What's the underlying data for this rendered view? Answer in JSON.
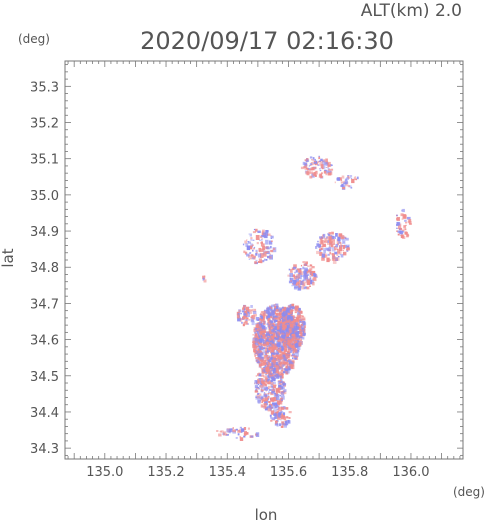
{
  "header": {
    "altitude": "ALT(km) 2.0",
    "timestamp": "2020/09/17 02:16:30"
  },
  "chart_data": {
    "type": "heatmap",
    "title": "",
    "xlabel": "lon",
    "ylabel": "lat",
    "x_unit": "(deg)",
    "y_unit": "(deg)",
    "xlim": [
      134.87,
      136.17
    ],
    "ylim": [
      34.27,
      35.37
    ],
    "x_ticks": [
      "135.0",
      "135.2",
      "135.4",
      "135.6",
      "135.8",
      "136.0"
    ],
    "y_ticks": [
      "34.3",
      "34.4",
      "34.5",
      "34.6",
      "34.7",
      "34.8",
      "34.9",
      "35.0",
      "35.1",
      "35.2",
      "35.3"
    ],
    "minor_tick_step": 0.02,
    "grid": false,
    "colors": {
      "positive": "#f08c8c",
      "negative": "#8c8cf0",
      "frame": "#777777",
      "text": "#555555"
    },
    "regions": [
      {
        "lon": 135.555,
        "lat": 34.6,
        "rx": 0.075,
        "ry": 0.1,
        "density": 1.6
      },
      {
        "lon": 135.61,
        "lat": 34.64,
        "rx": 0.04,
        "ry": 0.06,
        "density": 1.4
      },
      {
        "lon": 135.535,
        "lat": 34.47,
        "rx": 0.05,
        "ry": 0.06,
        "density": 0.9
      },
      {
        "lon": 135.57,
        "lat": 34.39,
        "rx": 0.035,
        "ry": 0.03,
        "density": 0.7
      },
      {
        "lon": 135.465,
        "lat": 34.67,
        "rx": 0.035,
        "ry": 0.03,
        "density": 0.6
      },
      {
        "lon": 135.64,
        "lat": 34.78,
        "rx": 0.045,
        "ry": 0.04,
        "density": 0.7
      },
      {
        "lon": 135.74,
        "lat": 34.86,
        "rx": 0.055,
        "ry": 0.04,
        "density": 0.6
      },
      {
        "lon": 135.5,
        "lat": 34.86,
        "rx": 0.05,
        "ry": 0.05,
        "density": 0.4
      },
      {
        "lon": 135.69,
        "lat": 35.08,
        "rx": 0.05,
        "ry": 0.03,
        "density": 0.7
      },
      {
        "lon": 135.79,
        "lat": 35.04,
        "rx": 0.04,
        "ry": 0.02,
        "density": 0.4
      },
      {
        "lon": 135.43,
        "lat": 34.345,
        "rx": 0.07,
        "ry": 0.015,
        "density": 0.4
      },
      {
        "lon": 135.32,
        "lat": 34.77,
        "rx": 0.012,
        "ry": 0.012,
        "density": 0.4
      },
      {
        "lon": 135.97,
        "lat": 34.92,
        "rx": 0.025,
        "ry": 0.045,
        "density": 0.4
      }
    ]
  }
}
